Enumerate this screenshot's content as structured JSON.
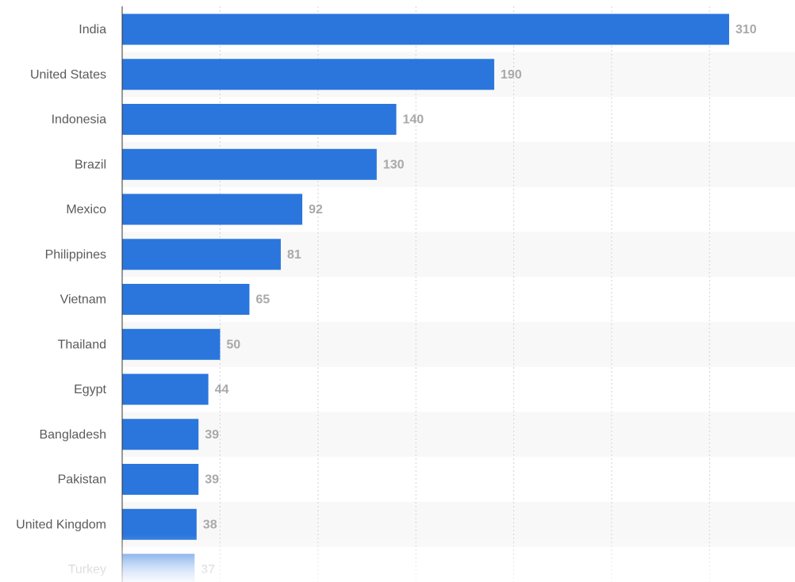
{
  "chart_data": {
    "type": "bar",
    "orientation": "horizontal",
    "categories": [
      "India",
      "United States",
      "Indonesia",
      "Brazil",
      "Mexico",
      "Philippines",
      "Vietnam",
      "Thailand",
      "Egypt",
      "Bangladesh",
      "Pakistan",
      "United Kingdom",
      "Turkey"
    ],
    "values": [
      310,
      190,
      140,
      130,
      92,
      81,
      65,
      50,
      44,
      39,
      39,
      38,
      37
    ],
    "value_labels": [
      "310",
      "190",
      "140",
      "130",
      "92",
      "81",
      "65",
      "50",
      "44",
      "39",
      "39",
      "38",
      "37"
    ],
    "title": "",
    "xlabel": "",
    "ylabel": "",
    "xlim": [
      0,
      350
    ],
    "grid": "vertical dashed",
    "legend": "none",
    "note": ""
  },
  "colors": {
    "bar": "#2a76dd",
    "bar_faded_end": "#eaf1fc",
    "stripe": "#f8f8f8",
    "grid": "#d3d3d3",
    "axis": "#333333"
  }
}
